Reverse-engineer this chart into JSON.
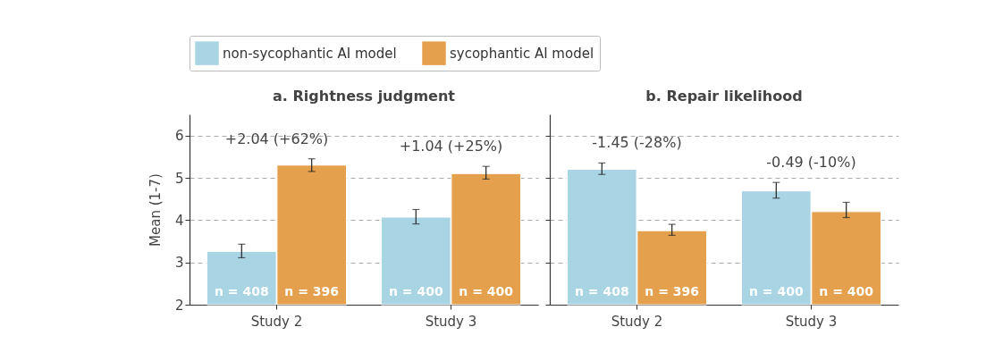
{
  "chart_data": [
    {
      "type": "bar",
      "title": "a. Rightness judgment",
      "ylabel": "Mean (1-7)",
      "categories": [
        "Study 2",
        "Study 3"
      ],
      "ylim": [
        2,
        6.5
      ],
      "yticks": [
        2,
        3,
        4,
        5,
        6
      ],
      "grid": "y",
      "legend": "top",
      "series": [
        {
          "name": "non-sycophantic AI model",
          "color": "#a8d4e4",
          "values": [
            3.26,
            4.07
          ],
          "errors": [
            [
              3.11,
              3.43
            ],
            [
              3.91,
              4.25
            ]
          ]
        },
        {
          "name": "sycophantic AI model",
          "color": "#e4a04c",
          "values": [
            5.3,
            5.1
          ],
          "errors": [
            [
              5.15,
              5.45
            ],
            [
              4.97,
              5.27
            ]
          ]
        }
      ],
      "annotations": [
        "+2.04 (+62%)",
        "+1.04 (+25%)",
        "n = 408",
        "n = 396",
        "n = 400",
        "n = 400"
      ]
    },
    {
      "type": "bar",
      "title": "b. Repair likelihood",
      "categories": [
        "Study 2",
        "Study 3"
      ],
      "ylim": [
        2,
        6.5
      ],
      "yticks": [
        2,
        3,
        4,
        5,
        6
      ],
      "grid": "y",
      "tick_labels": "x",
      "series": [
        {
          "color": "#a8d4e4",
          "values": [
            5.2,
            4.69
          ],
          "errors": [
            [
              5.08,
              5.35
            ],
            [
              4.52,
              4.89
            ]
          ]
        },
        {
          "color": "#e4a04c",
          "values": [
            3.75,
            4.2
          ],
          "errors": [
            [
              3.64,
              3.9
            ],
            [
              4.06,
              4.42
            ]
          ]
        }
      ],
      "annotations": [
        "-1.45 (-28%)",
        "-0.49 (-10%)",
        "n = 408",
        "n = 396",
        "n = 400",
        "n = 400"
      ]
    }
  ]
}
